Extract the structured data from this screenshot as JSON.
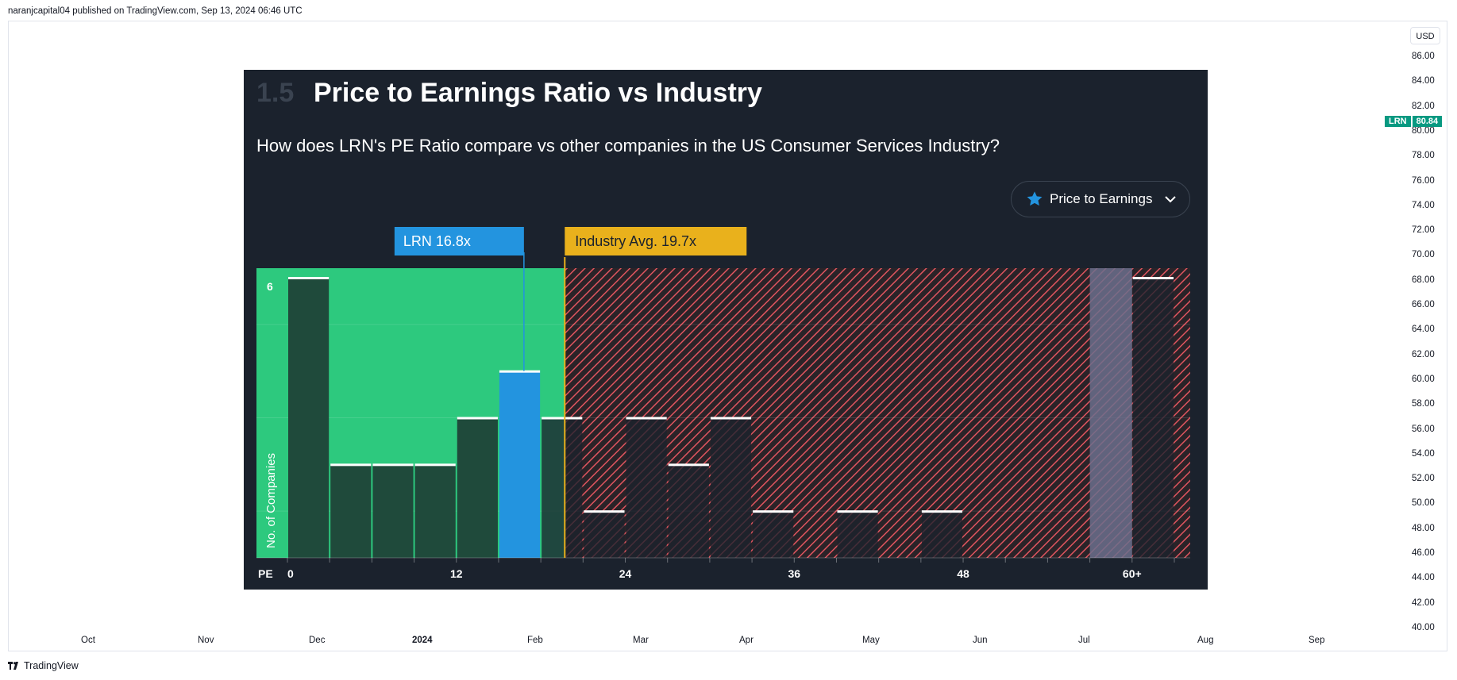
{
  "header": {
    "publisher_text": "naranjcapital04 published on TradingView.com, Sep 13, 2024 06:46 UTC"
  },
  "price_axis": {
    "currency": "USD",
    "ticks": [
      "86.00",
      "84.00",
      "82.00",
      "80.00",
      "78.00",
      "76.00",
      "74.00",
      "72.00",
      "70.00",
      "68.00",
      "66.00",
      "64.00",
      "62.00",
      "60.00",
      "58.00",
      "56.00",
      "54.00",
      "52.00",
      "50.00",
      "48.00",
      "46.00",
      "44.00",
      "42.00",
      "40.00"
    ],
    "last_price": {
      "symbol": "LRN",
      "value": "80.84"
    }
  },
  "time_axis": {
    "ticks": [
      {
        "label": "Oct",
        "bold": false
      },
      {
        "label": "Nov",
        "bold": false
      },
      {
        "label": "Dec",
        "bold": false
      },
      {
        "label": "2024",
        "bold": true
      },
      {
        "label": "Feb",
        "bold": false
      },
      {
        "label": "Mar",
        "bold": false
      },
      {
        "label": "Apr",
        "bold": false
      },
      {
        "label": "May",
        "bold": false
      },
      {
        "label": "Jun",
        "bold": false
      },
      {
        "label": "Jul",
        "bold": false
      },
      {
        "label": "Aug",
        "bold": false
      },
      {
        "label": "Sep",
        "bold": false
      }
    ]
  },
  "footer": {
    "brand": "TradingView"
  },
  "card": {
    "section_number": "1.5",
    "title": "Price to Earnings Ratio vs Industry",
    "subtitle": "How does LRN's PE Ratio compare vs other companies in the US Consumer Services Industry?",
    "dropdown_label": "Price to Earnings",
    "colors": {
      "background": "#1b222d",
      "good": "#2dc97e",
      "bad": "#e0555f",
      "company": "#2394df",
      "industry": "#e9b11c"
    }
  },
  "chart_data": {
    "type": "bar",
    "title": "Price to Earnings Ratio vs Industry",
    "xlabel": "PE",
    "ylabel": "No. of Companies",
    "x_tick_labels": [
      {
        "value": 0,
        "label": "0"
      },
      {
        "value": 12,
        "label": "12"
      },
      {
        "value": 24,
        "label": "24"
      },
      {
        "value": 36,
        "label": "36"
      },
      {
        "value": 48,
        "label": "48"
      },
      {
        "value": 60,
        "label": "60+"
      }
    ],
    "y_max_label": "6",
    "ylim": [
      0,
      6
    ],
    "bin_width": 3,
    "bins": [
      {
        "start": 0,
        "count": 6
      },
      {
        "start": 3,
        "count": 2
      },
      {
        "start": 6,
        "count": 2
      },
      {
        "start": 9,
        "count": 2
      },
      {
        "start": 12,
        "count": 3
      },
      {
        "start": 15,
        "count": 4,
        "company": true
      },
      {
        "start": 18,
        "count": 3
      },
      {
        "start": 21,
        "count": 1
      },
      {
        "start": 24,
        "count": 3
      },
      {
        "start": 27,
        "count": 2
      },
      {
        "start": 30,
        "count": 3
      },
      {
        "start": 33,
        "count": 1
      },
      {
        "start": 36,
        "count": 0
      },
      {
        "start": 39,
        "count": 1
      },
      {
        "start": 42,
        "count": 0
      },
      {
        "start": 45,
        "count": 1
      },
      {
        "start": 48,
        "count": 0
      },
      {
        "start": 51,
        "count": 0
      },
      {
        "start": 54,
        "count": 0
      },
      {
        "start": 57,
        "count": 0,
        "gap": true
      },
      {
        "start": 60,
        "count": 6
      }
    ],
    "company": {
      "name": "LRN",
      "value": 16.8,
      "label": "LRN 16.8x"
    },
    "industry_average": {
      "value": 19.7,
      "label": "Industry Avg. 19.7x"
    }
  }
}
